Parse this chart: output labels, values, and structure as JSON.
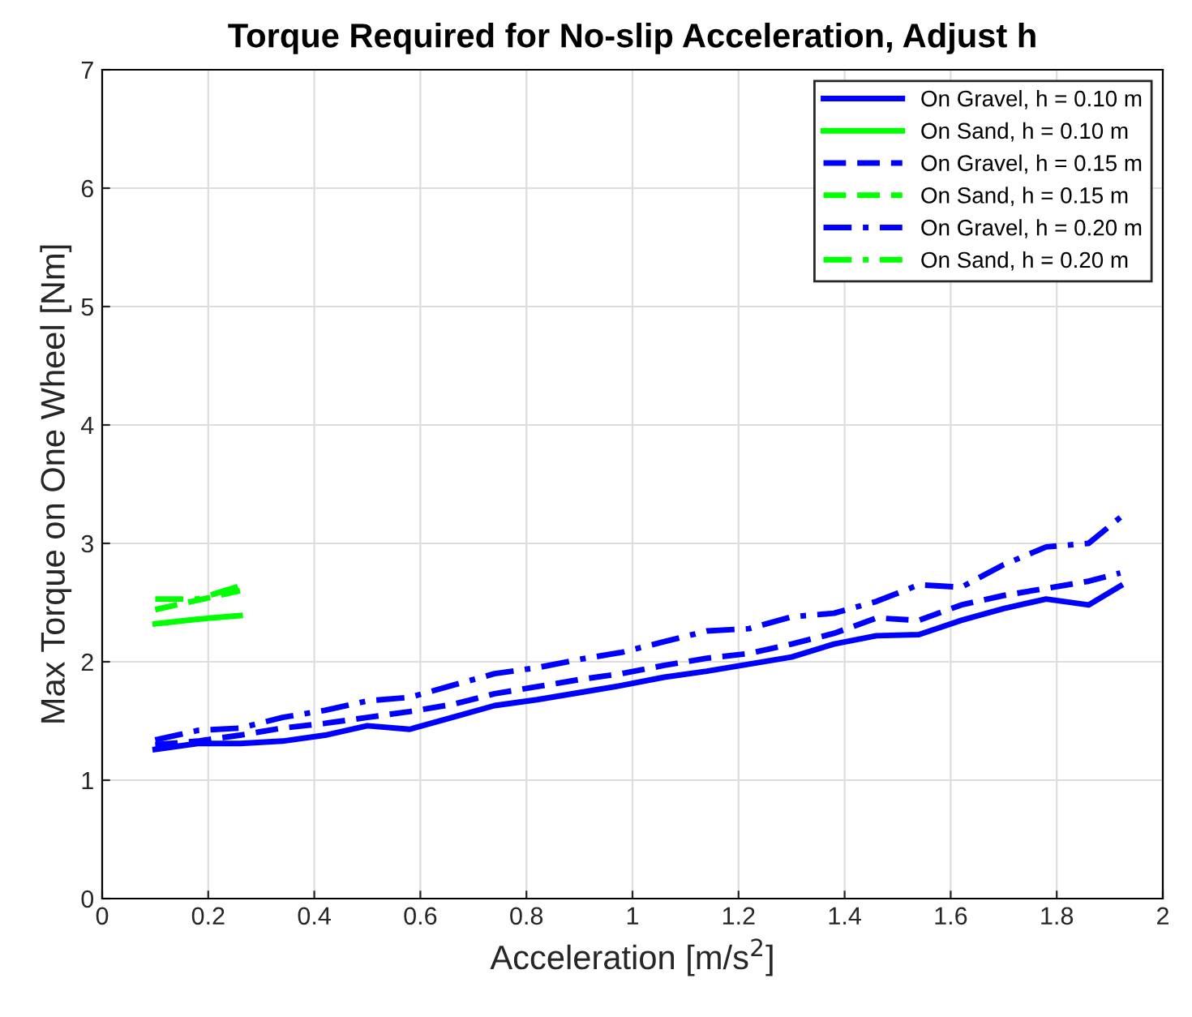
{
  "chart_data": {
    "type": "line",
    "title": "Torque Required for No-slip Acceleration, Adjust h",
    "xlabel": "Acceleration [m/s$^{2}$]",
    "ylabel": "Max Torque on One Wheel [Nm]",
    "xlim": [
      0,
      2
    ],
    "xticks": [
      0,
      0.2,
      0.4,
      0.6,
      0.8,
      1,
      1.2,
      1.4,
      1.6,
      1.8,
      2
    ],
    "ylim": [
      0,
      7
    ],
    "yticks": [
      0,
      1,
      2,
      3,
      4,
      5,
      6,
      7
    ],
    "grid": true,
    "legend": "top right",
    "marker": "none",
    "series": [
      {
        "name": "On Gravel, h = 0.10 m",
        "color": "#0000ff",
        "line_style": "solid",
        "x": [
          0.1,
          0.18,
          0.26,
          0.34,
          0.42,
          0.5,
          0.58,
          0.66,
          0.74,
          0.82,
          0.9,
          0.98,
          1.06,
          1.14,
          1.22,
          1.3,
          1.38,
          1.46,
          1.54,
          1.62,
          1.7,
          1.78,
          1.86,
          1.92
        ],
        "values": [
          1.26,
          1.31,
          1.31,
          1.33,
          1.38,
          1.46,
          1.43,
          1.53,
          1.63,
          1.68,
          1.74,
          1.8,
          1.87,
          1.92,
          1.98,
          2.04,
          2.15,
          2.22,
          2.23,
          2.35,
          2.45,
          2.53,
          2.48,
          2.64
        ]
      },
      {
        "name": "On Sand, h = 0.10 m",
        "color": "#00ff00",
        "line_style": "solid",
        "x": [
          0.1,
          0.18,
          0.26
        ],
        "values": [
          2.32,
          2.36,
          2.39
        ]
      },
      {
        "name": "On Gravel, h = 0.15 m",
        "color": "#0000ff",
        "line_style": "dashed",
        "x": [
          0.1,
          0.18,
          0.26,
          0.34,
          0.42,
          0.5,
          0.58,
          0.66,
          0.74,
          0.82,
          0.9,
          0.98,
          1.06,
          1.14,
          1.22,
          1.3,
          1.38,
          1.46,
          1.54,
          1.62,
          1.7,
          1.78,
          1.86,
          1.92
        ],
        "values": [
          1.3,
          1.33,
          1.38,
          1.44,
          1.48,
          1.53,
          1.58,
          1.64,
          1.73,
          1.79,
          1.85,
          1.9,
          1.97,
          2.03,
          2.07,
          2.15,
          2.24,
          2.37,
          2.35,
          2.48,
          2.56,
          2.62,
          2.68,
          2.75
        ]
      },
      {
        "name": "On Sand, h = 0.15 m",
        "color": "#00ff00",
        "line_style": "dashed",
        "x": [
          0.1,
          0.18,
          0.26
        ],
        "values": [
          2.44,
          2.52,
          2.6
        ]
      },
      {
        "name": "On Gravel, h = 0.20 m",
        "color": "#0000ff",
        "line_style": "dashdot",
        "x": [
          0.1,
          0.18,
          0.26,
          0.34,
          0.42,
          0.5,
          0.58,
          0.66,
          0.74,
          0.82,
          0.9,
          0.98,
          1.06,
          1.14,
          1.22,
          1.3,
          1.38,
          1.46,
          1.54,
          1.62,
          1.7,
          1.78,
          1.86,
          1.92
        ],
        "values": [
          1.34,
          1.42,
          1.44,
          1.53,
          1.59,
          1.67,
          1.7,
          1.8,
          1.9,
          1.95,
          2.02,
          2.08,
          2.17,
          2.26,
          2.28,
          2.38,
          2.41,
          2.51,
          2.65,
          2.63,
          2.82,
          2.97,
          3.0,
          3.22
        ]
      },
      {
        "name": "On Sand, h = 0.20 m",
        "color": "#00ff00",
        "line_style": "dashdot",
        "x": [
          0.1,
          0.18,
          0.26
        ],
        "values": [
          2.53,
          2.53,
          2.64
        ]
      }
    ]
  }
}
